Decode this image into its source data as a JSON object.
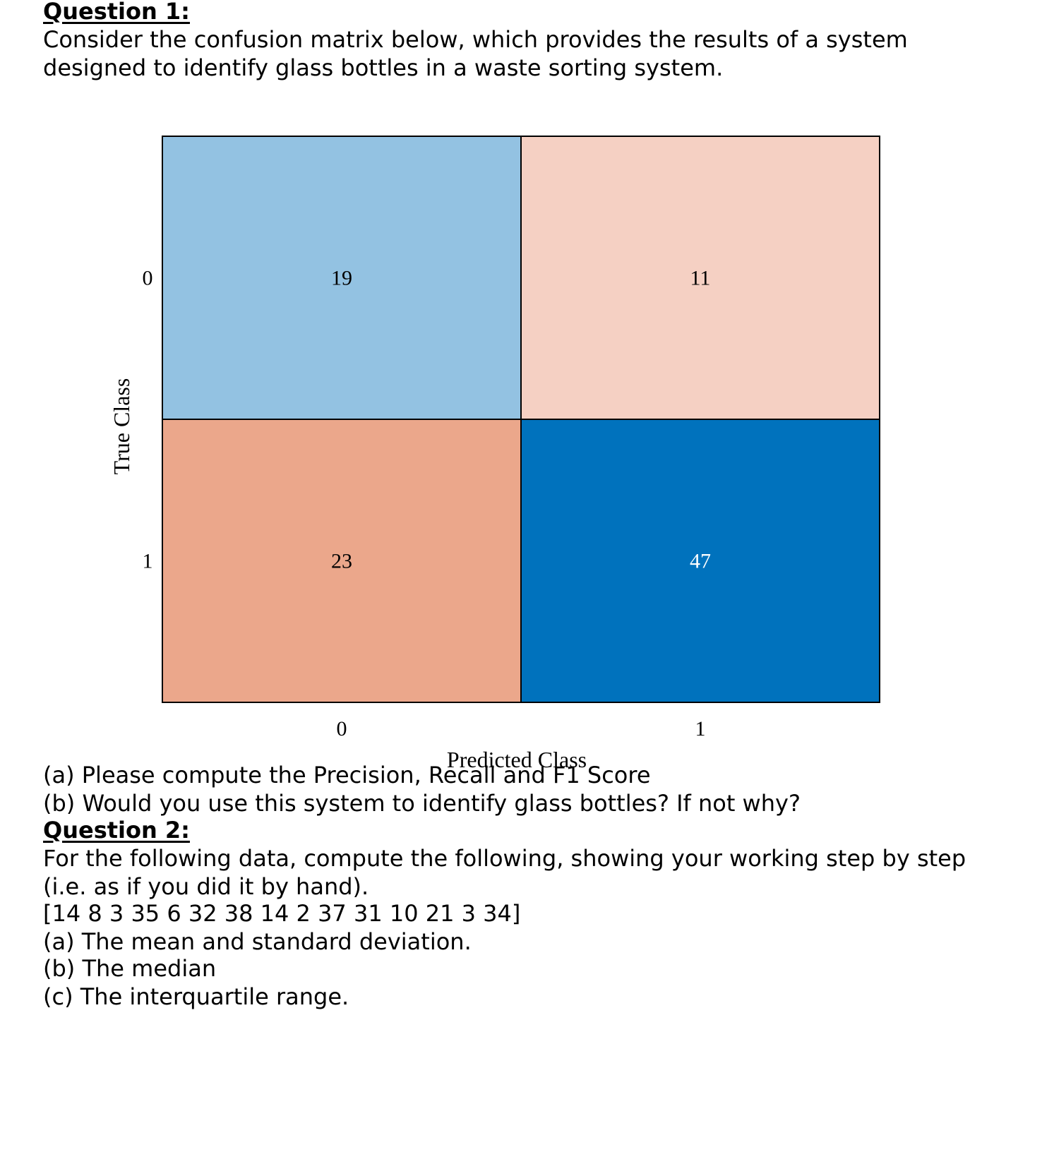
{
  "question1": {
    "heading": "Question 1:",
    "intro_line1": "Consider the confusion matrix below, which provides the results of a system",
    "intro_line2": "designed to identify glass bottles in a waste sorting system.",
    "part_a": "(a) Please compute the Precision, Recall and F1 Score",
    "part_b": "(b) Would you use this system to identify glass bottles? If not why?"
  },
  "chart_data": {
    "type": "heatmap",
    "title": "",
    "xlabel": "Predicted Class",
    "ylabel": "True Class",
    "x_categories": [
      "0",
      "1"
    ],
    "y_categories": [
      "0",
      "1"
    ],
    "values": [
      [
        19,
        11
      ],
      [
        23,
        47
      ]
    ],
    "cell_colors": [
      [
        "#93c2e2",
        "#f5d0c3"
      ],
      [
        "#eba78b",
        "#0072bd"
      ]
    ],
    "cell_text_colors": [
      [
        "#000000",
        "#000000"
      ],
      [
        "#000000",
        "#ffffff"
      ]
    ],
    "grid": false,
    "legend": "none"
  },
  "question2": {
    "heading": "Question 2:",
    "intro_line1": "For the following data, compute the following, showing your working step by step",
    "intro_line2": "(i.e. as if you did it by hand).",
    "data": "[14 8 3 35 6 32 38 14 2 37 31 10 21 3 34]",
    "part_a": "(a) The mean and standard deviation.",
    "part_b": "(b) The median",
    "part_c": "(c) The interquartile range."
  }
}
